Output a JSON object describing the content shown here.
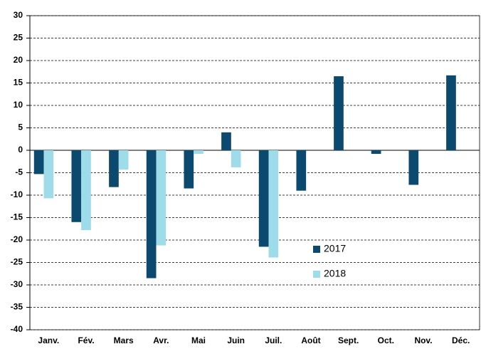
{
  "chart_data": {
    "type": "bar",
    "categories": [
      "Janv.",
      "Fév.",
      "Mars",
      "Avr.",
      "Mai",
      "Juin",
      "Juil.",
      "Août",
      "Sept.",
      "Oct.",
      "Nov.",
      "Déc."
    ],
    "series": [
      {
        "name": "2017",
        "color": "#0b4a6e",
        "values": [
          -5.3,
          -16,
          -8.2,
          -28.5,
          -8.5,
          4,
          -21.5,
          -9,
          16.5,
          -0.8,
          -7.7,
          16.7
        ]
      },
      {
        "name": "2018",
        "color": "#9fdcea",
        "values": [
          -10.7,
          -17.8,
          -4.3,
          -21.2,
          -0.8,
          -3.8,
          -23.9,
          null,
          null,
          null,
          null,
          null
        ]
      }
    ],
    "ylim": [
      -40,
      30
    ],
    "yticks": [
      -40,
      -35,
      -30,
      -25,
      -20,
      -15,
      -10,
      -5,
      0,
      5,
      10,
      15,
      20,
      25,
      30
    ],
    "grid": true
  }
}
